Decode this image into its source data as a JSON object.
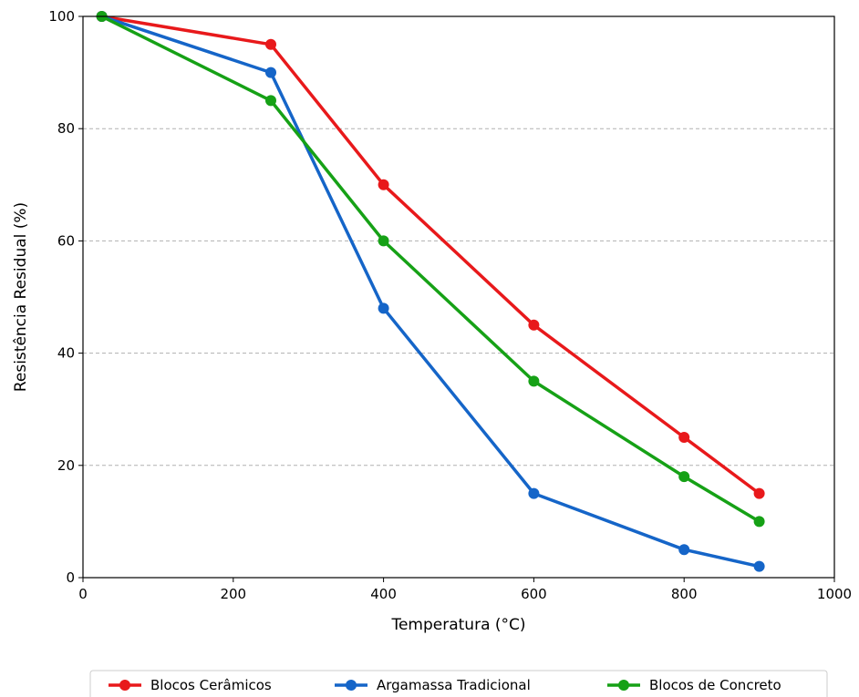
{
  "chart_data": {
    "type": "line",
    "title": "",
    "xlabel": "Temperatura (°C)",
    "ylabel": "Resistência Residual (%)",
    "xlim": [
      0,
      1000
    ],
    "ylim": [
      0,
      100
    ],
    "xticks": [
      0,
      200,
      400,
      600,
      800,
      1000
    ],
    "yticks": [
      0,
      20,
      40,
      60,
      80,
      100
    ],
    "grid": "horizontal dashed",
    "legend_position": "bottom",
    "series": [
      {
        "name": "Blocos Cerâmicos",
        "color": "#e8191b",
        "x": [
          25,
          250,
          400,
          600,
          800,
          900
        ],
        "y": [
          100,
          95,
          70,
          45,
          25,
          15
        ]
      },
      {
        "name": "Argamassa Tradicional",
        "color": "#1565c8",
        "x": [
          25,
          250,
          400,
          600,
          800,
          900
        ],
        "y": [
          100,
          90,
          48,
          15,
          5,
          2
        ]
      },
      {
        "name": "Blocos de Concreto",
        "color": "#16a116",
        "x": [
          25,
          250,
          400,
          600,
          800,
          900
        ],
        "y": [
          100,
          85,
          60,
          35,
          18,
          10
        ]
      }
    ]
  }
}
